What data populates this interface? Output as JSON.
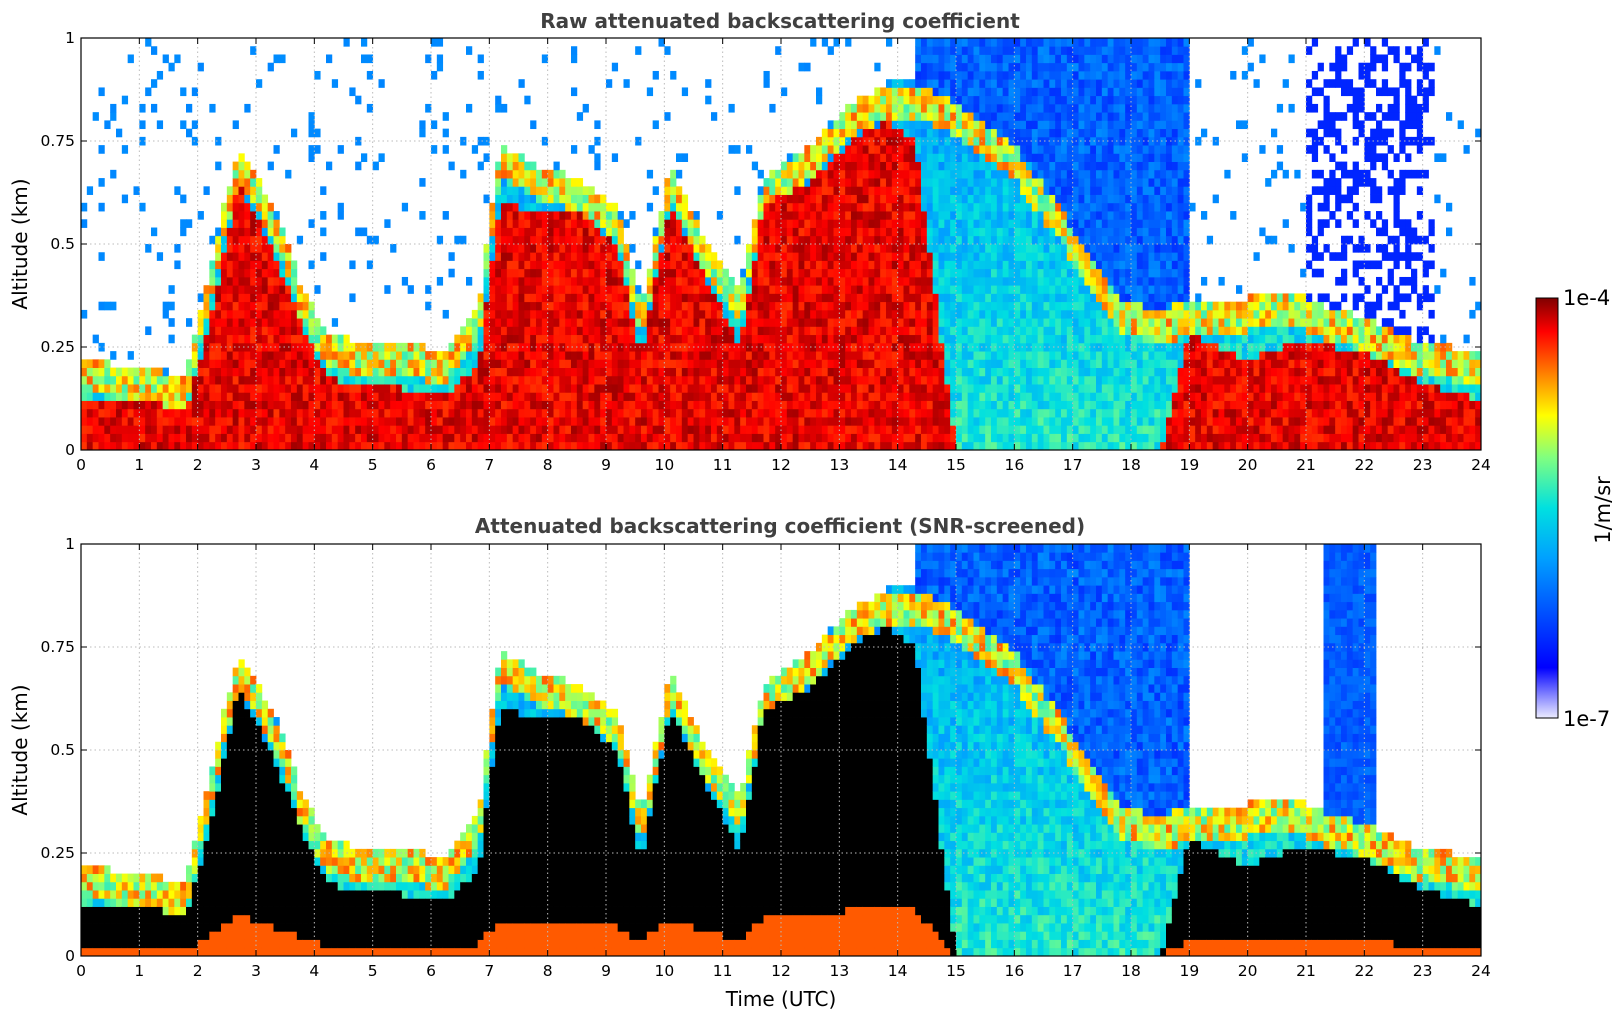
{
  "chart_data": [
    {
      "type": "heatmap",
      "title": "Raw attenuated backscattering coefficient",
      "xlabel": "",
      "ylabel": "Altitude (km)",
      "xlim": [
        0,
        24
      ],
      "ylim": [
        0,
        1
      ],
      "x_ticks": [
        "0",
        "1",
        "2",
        "3",
        "4",
        "5",
        "6",
        "7",
        "8",
        "9",
        "10",
        "11",
        "12",
        "13",
        "14",
        "15",
        "16",
        "17",
        "18",
        "19",
        "20",
        "21",
        "22",
        "23",
        "24"
      ],
      "y_ticks": [
        "0",
        "0.25",
        "0.5",
        "0.75",
        "1"
      ],
      "y_tick_values": [
        0,
        0.25,
        0.5,
        0.75,
        1
      ],
      "grid": true,
      "colorscale": "jet",
      "screened": false,
      "features": {
        "boundary_layer_top": [
          [
            0,
            0.18
          ],
          [
            1,
            0.16
          ],
          [
            1.8,
            0.14
          ],
          [
            2.2,
            0.4
          ],
          [
            2.7,
            0.7
          ],
          [
            3.3,
            0.55
          ],
          [
            3.8,
            0.35
          ],
          [
            4.2,
            0.25
          ],
          [
            4.8,
            0.22
          ],
          [
            5.5,
            0.22
          ],
          [
            6.2,
            0.2
          ],
          [
            6.8,
            0.3
          ],
          [
            7.2,
            0.7
          ],
          [
            7.8,
            0.65
          ],
          [
            8.5,
            0.62
          ],
          [
            9.2,
            0.55
          ],
          [
            9.6,
            0.3
          ],
          [
            10.1,
            0.65
          ],
          [
            10.6,
            0.5
          ],
          [
            11.3,
            0.35
          ],
          [
            11.7,
            0.62
          ],
          [
            12.5,
            0.7
          ],
          [
            13.2,
            0.8
          ],
          [
            13.8,
            0.85
          ],
          [
            14.3,
            0.85
          ],
          [
            15,
            0.8
          ],
          [
            16,
            0.7
          ],
          [
            17,
            0.5
          ],
          [
            17.8,
            0.32
          ],
          [
            18.5,
            0.3
          ],
          [
            19,
            0.32
          ],
          [
            20,
            0.33
          ],
          [
            21,
            0.33
          ],
          [
            21.5,
            0.3
          ],
          [
            22,
            0.28
          ],
          [
            23,
            0.22
          ],
          [
            24,
            0.2
          ]
        ],
        "dense_aerosol_top": [
          [
            0,
            0.12
          ],
          [
            1,
            0.12
          ],
          [
            1.8,
            0.1
          ],
          [
            2.2,
            0.3
          ],
          [
            2.7,
            0.65
          ],
          [
            3.3,
            0.48
          ],
          [
            3.8,
            0.3
          ],
          [
            4.2,
            0.18
          ],
          [
            4.8,
            0.15
          ],
          [
            5.5,
            0.15
          ],
          [
            6.2,
            0.13
          ],
          [
            6.8,
            0.2
          ],
          [
            7.2,
            0.6
          ],
          [
            7.8,
            0.58
          ],
          [
            8.5,
            0.58
          ],
          [
            9.2,
            0.5
          ],
          [
            9.6,
            0.22
          ],
          [
            10.1,
            0.6
          ],
          [
            10.6,
            0.45
          ],
          [
            11.3,
            0.25
          ],
          [
            11.7,
            0.6
          ],
          [
            12.5,
            0.65
          ],
          [
            13.2,
            0.75
          ],
          [
            13.8,
            0.8
          ],
          [
            14.3,
            0.75
          ],
          [
            15,
            0
          ],
          [
            16,
            0
          ],
          [
            17,
            0
          ],
          [
            17.8,
            0
          ],
          [
            18.5,
            0
          ],
          [
            19,
            0.28
          ],
          [
            20,
            0.22
          ],
          [
            21,
            0.27
          ],
          [
            21.5,
            0.25
          ],
          [
            22,
            0.24
          ],
          [
            23,
            0.16
          ],
          [
            24,
            0.12
          ]
        ]
      }
    },
    {
      "type": "heatmap",
      "title": "Attenuated backscattering coefficient (SNR-screened)",
      "xlabel": "Time (UTC)",
      "ylabel": "Altitude (km)",
      "xlim": [
        0,
        24
      ],
      "ylim": [
        0,
        1
      ],
      "x_ticks": [
        "0",
        "1",
        "2",
        "3",
        "4",
        "5",
        "6",
        "7",
        "8",
        "9",
        "10",
        "11",
        "12",
        "13",
        "14",
        "15",
        "16",
        "17",
        "18",
        "19",
        "20",
        "21",
        "22",
        "23",
        "24"
      ],
      "y_ticks": [
        "0",
        "0.25",
        "0.5",
        "0.75",
        "1"
      ],
      "y_tick_values": [
        0,
        0.25,
        0.5,
        0.75,
        1
      ],
      "grid": true,
      "colorscale": "jet",
      "screened": true,
      "saturated_color": "#000000"
    }
  ],
  "colorbar": {
    "label": "1/m/sr",
    "max_label": "1e-4",
    "min_label": "1e-7",
    "scale": "log",
    "range": [
      1e-07,
      0.0001
    ]
  }
}
